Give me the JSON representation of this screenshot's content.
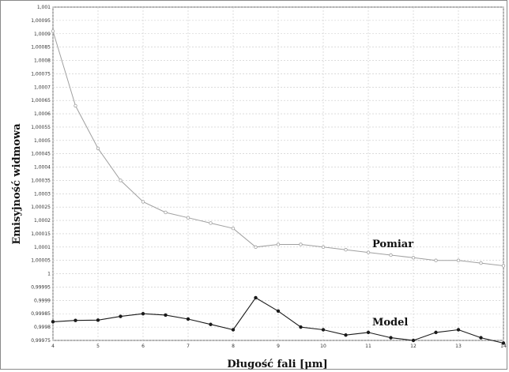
{
  "chart_data": {
    "type": "line",
    "xlabel": "Długość fali [μm]",
    "ylabel": "Emisyjność widmowa",
    "xlim": [
      4,
      14
    ],
    "ylim": [
      0.99975,
      1.001
    ],
    "grid": true,
    "x_ticks": [
      "4",
      "5",
      "6",
      "7",
      "8",
      "9",
      "10",
      "11",
      "12",
      "13",
      "14"
    ],
    "y_ticks": [
      "0,99975",
      "0,9998",
      "0,99985",
      "0,9999",
      "0,99995",
      "1",
      "1,00005",
      "1,0001",
      "1,00015",
      "1,0002",
      "1,00025",
      "1,0003",
      "1,00035",
      "1,0004",
      "1,00045",
      "1,0005",
      "1,00055",
      "1,0006",
      "1,00065",
      "1,0007",
      "1,00075",
      "1,0008",
      "1,00085",
      "1,0009",
      "1,00095",
      "1,001"
    ],
    "series": [
      {
        "name": "Pomiar",
        "color": "#a0a0a0",
        "marker": "circle-open",
        "x": [
          4,
          4.5,
          5,
          5.5,
          6,
          6.5,
          7,
          7.5,
          8,
          8.5,
          9,
          9.5,
          10,
          10.5,
          11,
          11.5,
          12,
          12.5,
          13,
          13.5,
          14
        ],
        "y": [
          1.00091,
          1.00063,
          1.00047,
          1.00035,
          1.00027,
          1.00023,
          1.00021,
          1.00019,
          1.00017,
          1.0001,
          1.00011,
          1.00011,
          1.0001,
          1.00009,
          1.00008,
          1.00007,
          1.00006,
          1.00005,
          1.00005,
          1.00004,
          1.00003
        ]
      },
      {
        "name": "Model",
        "color": "#1a1a1a",
        "marker": "circle-filled",
        "x": [
          4,
          4.5,
          5,
          5.5,
          6,
          6.5,
          7,
          7.5,
          8,
          8.5,
          9,
          9.5,
          10,
          10.5,
          11,
          11.5,
          12,
          12.5,
          13,
          13.5,
          14
        ],
        "y": [
          0.99982,
          0.999825,
          0.999826,
          0.99984,
          0.99985,
          0.999845,
          0.99983,
          0.99981,
          0.99979,
          0.99991,
          0.99986,
          0.9998,
          0.99979,
          0.99977,
          0.99978,
          0.99976,
          0.99975,
          0.99978,
          0.99979,
          0.99976,
          0.99974
        ]
      }
    ]
  }
}
